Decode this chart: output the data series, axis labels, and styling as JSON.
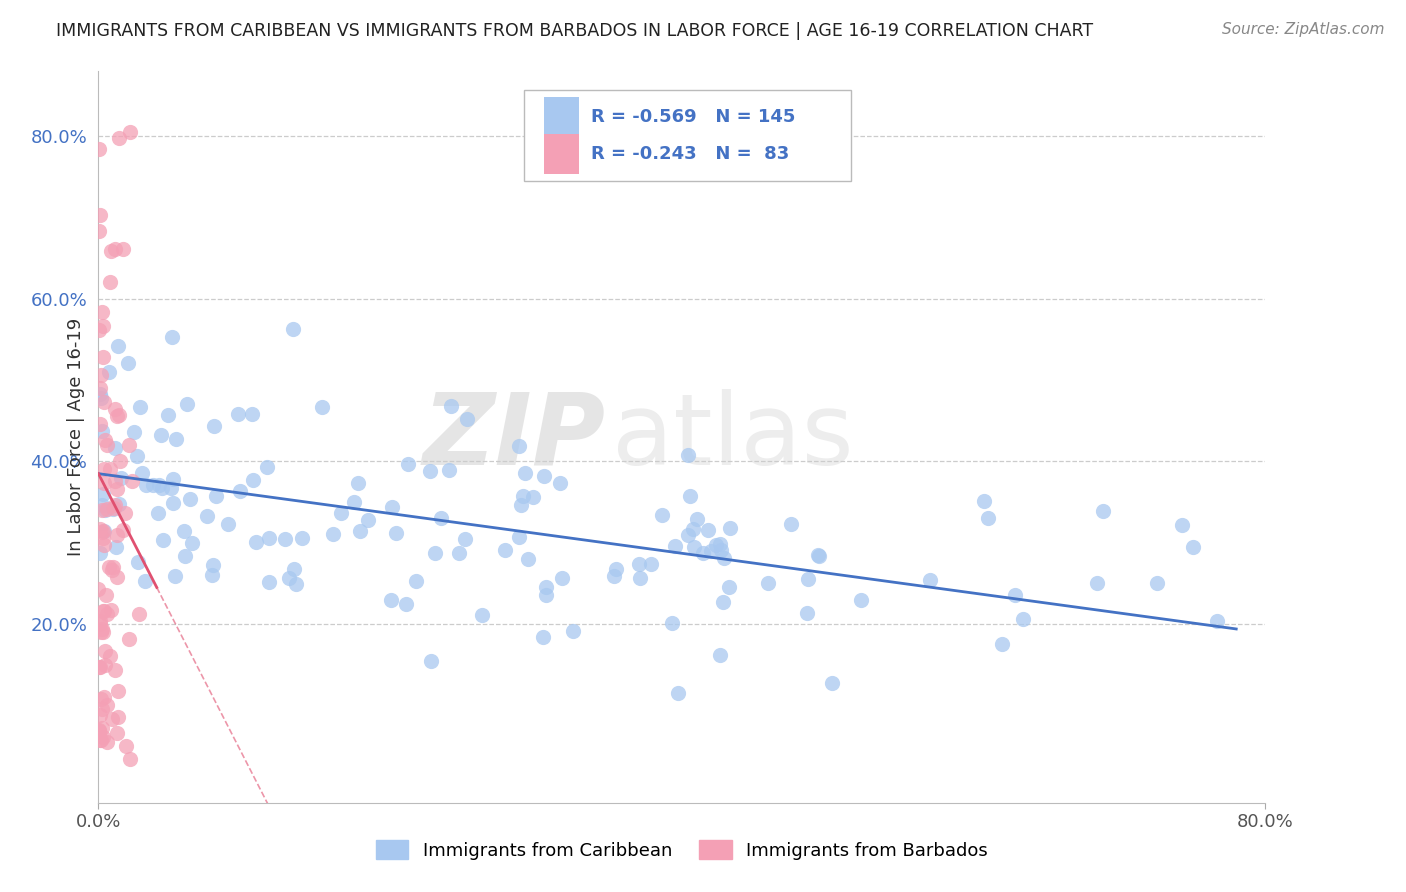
{
  "title": "IMMIGRANTS FROM CARIBBEAN VS IMMIGRANTS FROM BARBADOS IN LABOR FORCE | AGE 16-19 CORRELATION CHART",
  "source": "Source: ZipAtlas.com",
  "ylabel": "In Labor Force | Age 16-19",
  "ytick_labels": [
    "20.0%",
    "40.0%",
    "60.0%",
    "80.0%"
  ],
  "ytick_values": [
    0.2,
    0.4,
    0.6,
    0.8
  ],
  "xlim": [
    0.0,
    0.8
  ],
  "ylim": [
    -0.02,
    0.88
  ],
  "legend_r1": "-0.569",
  "legend_n1": "145",
  "legend_r2": "-0.243",
  "legend_n2": " 83",
  "watermark_zip": "ZIP",
  "watermark_atlas": "atlas",
  "blue_color": "#A8C8F0",
  "pink_color": "#F4A0B5",
  "blue_line_color": "#4472C4",
  "pink_line_color": "#E05070",
  "scatter_alpha": 0.75,
  "blue_N": 145,
  "pink_N": 83,
  "blue_intercept": 0.385,
  "blue_slope": -0.245,
  "pink_intercept": 0.385,
  "pink_slope": -3.5
}
